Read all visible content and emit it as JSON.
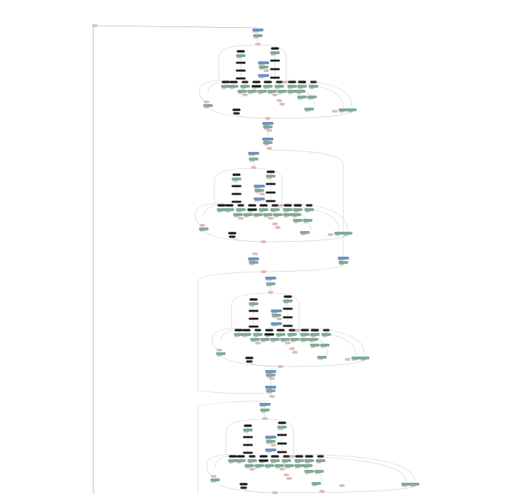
{
  "diagram": {
    "kind": "computational-graph",
    "blocks": 4,
    "colors": {
      "edge": "#c8c8c8",
      "edge_dark": "#9a9a9a",
      "op_fill": "#7fae95",
      "op_stroke": "#4f7f65",
      "matmul_fill": "#6f93c7",
      "matmul_stroke": "#3f5f92",
      "param_fill": "#1a1a1a",
      "const_fill": "#e6b9b9",
      "const_stroke": "#b07a7a",
      "label_text": "#777777"
    }
  }
}
